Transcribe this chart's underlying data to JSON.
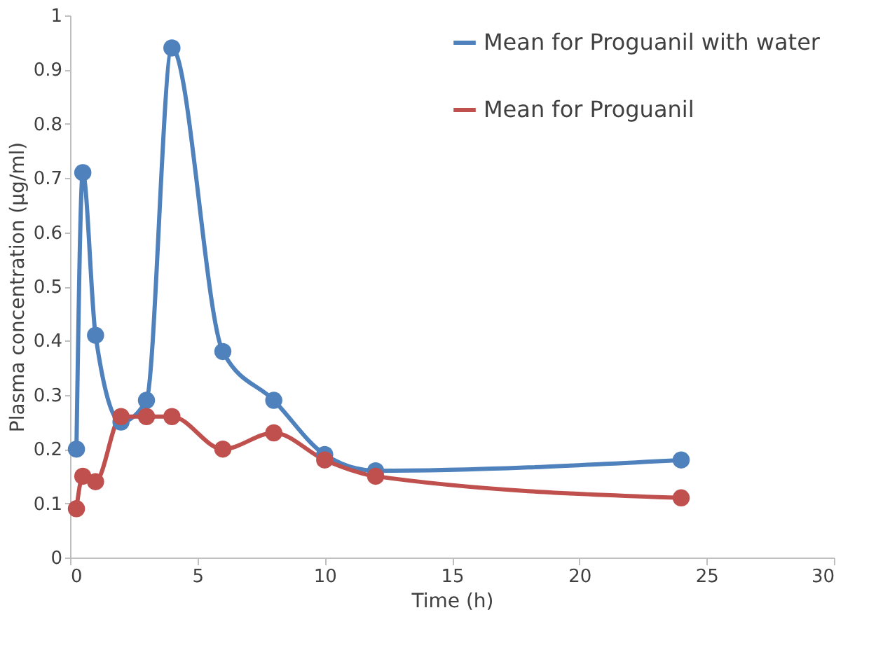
{
  "chart_data": {
    "type": "line",
    "xlabel": "Time (h)",
    "ylabel": "Plasma concentration (µg/ml)",
    "xlim": [
      0,
      30
    ],
    "xticks": [
      0,
      5,
      10,
      15,
      20,
      25,
      30
    ],
    "ylim": [
      0,
      1
    ],
    "yticks": [
      0,
      0.1,
      0.2,
      0.3,
      0.4,
      0.5,
      0.6,
      0.7,
      0.8,
      0.9,
      1
    ],
    "grid": false,
    "legend": "top right",
    "marker": "circle",
    "line_style": "solid",
    "x": [
      0.25,
      0.5,
      1,
      2,
      3,
      4,
      6,
      8,
      10,
      12,
      24
    ],
    "series": [
      {
        "name": "Mean for Proguanil with water",
        "color": "#4f81bd",
        "values": [
          0.2,
          0.71,
          0.41,
          0.25,
          0.29,
          0.94,
          0.38,
          0.29,
          0.19,
          0.16,
          0.18
        ]
      },
      {
        "name": "Mean for Proguanil",
        "color": "#c0504d",
        "values": [
          0.09,
          0.15,
          0.14,
          0.26,
          0.26,
          0.26,
          0.2,
          0.23,
          0.18,
          0.15,
          0.11
        ]
      }
    ]
  }
}
